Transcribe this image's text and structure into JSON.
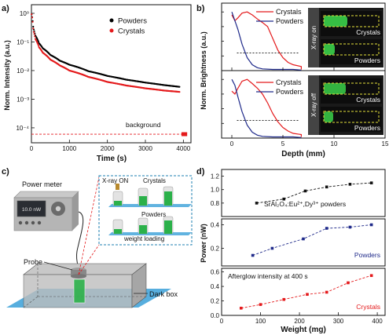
{
  "panels": {
    "a": {
      "letter": "a)",
      "ylabel": "Norm. Intensity (a.u.)",
      "xlabel": "Time (s)",
      "ytick_labels": [
        "10⁰",
        "10⁻¹",
        "10⁻²",
        "10⁻³",
        "10⁻⁴"
      ],
      "xtick_labels": [
        "0",
        "1000",
        "2000",
        "3000",
        "4000"
      ],
      "legend": [
        {
          "name": "Powders",
          "color": "#000000"
        },
        {
          "name": "Crystals",
          "color": "#e41a1c"
        }
      ],
      "background_label": "background"
    },
    "b": {
      "letter": "b)",
      "ylabel": "Norm. Brightness (a.u.)",
      "xlabel": "Depth (mm)",
      "xtick_labels": [
        "0",
        "5",
        "10",
        "15"
      ],
      "legend_top": [
        {
          "name": "Crystals",
          "color": "#e41a1c"
        },
        {
          "name": "Powders",
          "color": "#1f2a8a"
        }
      ],
      "legend_bottom": [
        {
          "name": "Crystals",
          "color": "#e41a1c"
        },
        {
          "name": "Powders",
          "color": "#1f2a8a"
        }
      ],
      "inset_top": {
        "side": "X-ray on",
        "top": "Crystals",
        "bottom": "Powders"
      },
      "inset_bottom": {
        "side": "X-ray off",
        "top": "Crystals",
        "bottom": "Powders"
      }
    },
    "c": {
      "letter": "c)",
      "power_meter_label": "Power meter",
      "meter_reading": "10.0 nW",
      "probe_label": "Probe",
      "darkbox_label": "Dark box",
      "inset_xray": "X-ray ON",
      "inset_crystals": "Crystals",
      "inset_powders": "Powders",
      "inset_weight": "weight loading"
    },
    "d": {
      "letter": "d)",
      "ylabel": "Power (nW)",
      "xlabel": "Weight (mg)",
      "xtick_labels": [
        "0",
        "100",
        "200",
        "300",
        "400"
      ],
      "sub1": {
        "label": "SrAl₂O₄:Eu²⁺,Dy³⁺ powders",
        "yticks": [
          "0.8",
          "1.0",
          "1.2"
        ],
        "color": "#111111"
      },
      "sub2": {
        "label": "Powders",
        "yticks": [
          "0.2",
          "0.4"
        ],
        "color": "#1f2a8a"
      },
      "sub3": {
        "label": "Crystals",
        "annotation": "Afterglow intensity at 400 s",
        "yticks": [
          "0.0",
          "0.2",
          "0.4",
          "0.6"
        ],
        "color": "#e41a1c"
      }
    }
  },
  "chart_data": [
    {
      "type": "line",
      "panel": "a",
      "xlabel": "Time (s)",
      "ylabel": "Norm. Intensity (a.u.)",
      "yscale": "log",
      "xlim": [
        0,
        4200
      ],
      "ylim": [
        3e-05,
        2
      ],
      "series": [
        {
          "name": "Powders",
          "color": "#000000",
          "x": [
            0,
            50,
            100,
            200,
            300,
            500,
            750,
            1000,
            1500,
            2000,
            2500,
            3000,
            3500,
            3900
          ],
          "y": [
            1.0,
            0.3,
            0.17,
            0.09,
            0.06,
            0.035,
            0.022,
            0.016,
            0.0095,
            0.0065,
            0.0048,
            0.0038,
            0.0031,
            0.0027
          ]
        },
        {
          "name": "Crystals",
          "color": "#e41a1c",
          "x": [
            0,
            50,
            100,
            200,
            300,
            500,
            750,
            1000,
            1500,
            2000,
            2500,
            3000,
            3500,
            3900
          ],
          "y": [
            1.0,
            0.25,
            0.13,
            0.065,
            0.042,
            0.024,
            0.015,
            0.01,
            0.006,
            0.004,
            0.003,
            0.0024,
            0.002,
            0.0018
          ]
        }
      ],
      "background_level": 6e-05
    },
    {
      "type": "line",
      "panel": "b-top",
      "xlabel": "Depth (mm)",
      "xlim": [
        -1,
        15
      ],
      "ylim": [
        0,
        1.15
      ],
      "threshold": 0.3,
      "series": [
        {
          "name": "Crystals",
          "color": "#e41a1c",
          "x": [
            0,
            0.3,
            0.6,
            1.0,
            1.5,
            2.0,
            2.5,
            3.0,
            3.5,
            4.0,
            4.5,
            5.0,
            5.5,
            6.0,
            7,
            8,
            10,
            12,
            15
          ],
          "y": [
            0.95,
            0.85,
            0.9,
            0.98,
            1.0,
            0.95,
            0.88,
            0.82,
            0.75,
            0.55,
            0.35,
            0.22,
            0.14,
            0.1,
            0.07,
            0.05,
            0.04,
            0.03,
            0.02
          ]
        },
        {
          "name": "Powders",
          "color": "#1f2a8a",
          "x": [
            0,
            0.3,
            0.6,
            1.0,
            1.5,
            2.0,
            2.5,
            3,
            4,
            6,
            10,
            15
          ],
          "y": [
            1.0,
            0.85,
            0.7,
            0.45,
            0.22,
            0.1,
            0.05,
            0.03,
            0.02,
            0.02,
            0.01,
            0.01
          ]
        }
      ]
    },
    {
      "type": "line",
      "panel": "b-bottom",
      "xlabel": "Depth (mm)",
      "xlim": [
        -1,
        15
      ],
      "ylim": [
        0,
        1.15
      ],
      "threshold": 0.3,
      "series": [
        {
          "name": "Crystals",
          "color": "#e41a1c",
          "x": [
            0,
            0.3,
            0.6,
            1.0,
            1.5,
            2.0,
            2.5,
            3.0,
            3.5,
            4.0,
            4.5,
            5.0,
            5.5,
            6.0,
            7,
            8,
            10,
            12,
            15
          ],
          "y": [
            0.8,
            0.75,
            0.85,
            0.97,
            1.0,
            0.93,
            0.85,
            0.75,
            0.6,
            0.42,
            0.28,
            0.18,
            0.12,
            0.08,
            0.06,
            0.05,
            0.04,
            0.03,
            0.02
          ]
        },
        {
          "name": "Powders",
          "color": "#1f2a8a",
          "x": [
            0,
            0.3,
            0.6,
            1.0,
            1.5,
            2.0,
            2.5,
            3,
            4,
            6,
            10,
            15
          ],
          "y": [
            1.0,
            0.9,
            0.7,
            0.45,
            0.22,
            0.1,
            0.05,
            0.03,
            0.02,
            0.02,
            0.01,
            0.01
          ]
        }
      ]
    },
    {
      "type": "line",
      "panel": "d",
      "xlabel": "Weight (mg)",
      "ylabel": "Power (nW)",
      "xlim": [
        0,
        420
      ],
      "series": [
        {
          "name": "SrAl₂O₄:Eu²⁺,Dy³⁺ powders",
          "color": "#111111",
          "ylim": [
            0.6,
            1.3
          ],
          "x": [
            90,
            160,
            215,
            270,
            330,
            385
          ],
          "y": [
            0.8,
            0.86,
            0.98,
            1.04,
            1.08,
            1.1
          ]
        },
        {
          "name": "Powders",
          "color": "#1f2a8a",
          "ylim": [
            0.05,
            0.45
          ],
          "x": [
            80,
            130,
            210,
            270,
            330,
            385
          ],
          "y": [
            0.14,
            0.2,
            0.28,
            0.37,
            0.38,
            0.4
          ]
        },
        {
          "name": "Crystals",
          "color": "#e41a1c",
          "ylim": [
            0,
            0.65
          ],
          "x": [
            50,
            100,
            160,
            220,
            270,
            325,
            385
          ],
          "y": [
            0.1,
            0.15,
            0.22,
            0.29,
            0.32,
            0.45,
            0.55
          ]
        }
      ]
    }
  ]
}
